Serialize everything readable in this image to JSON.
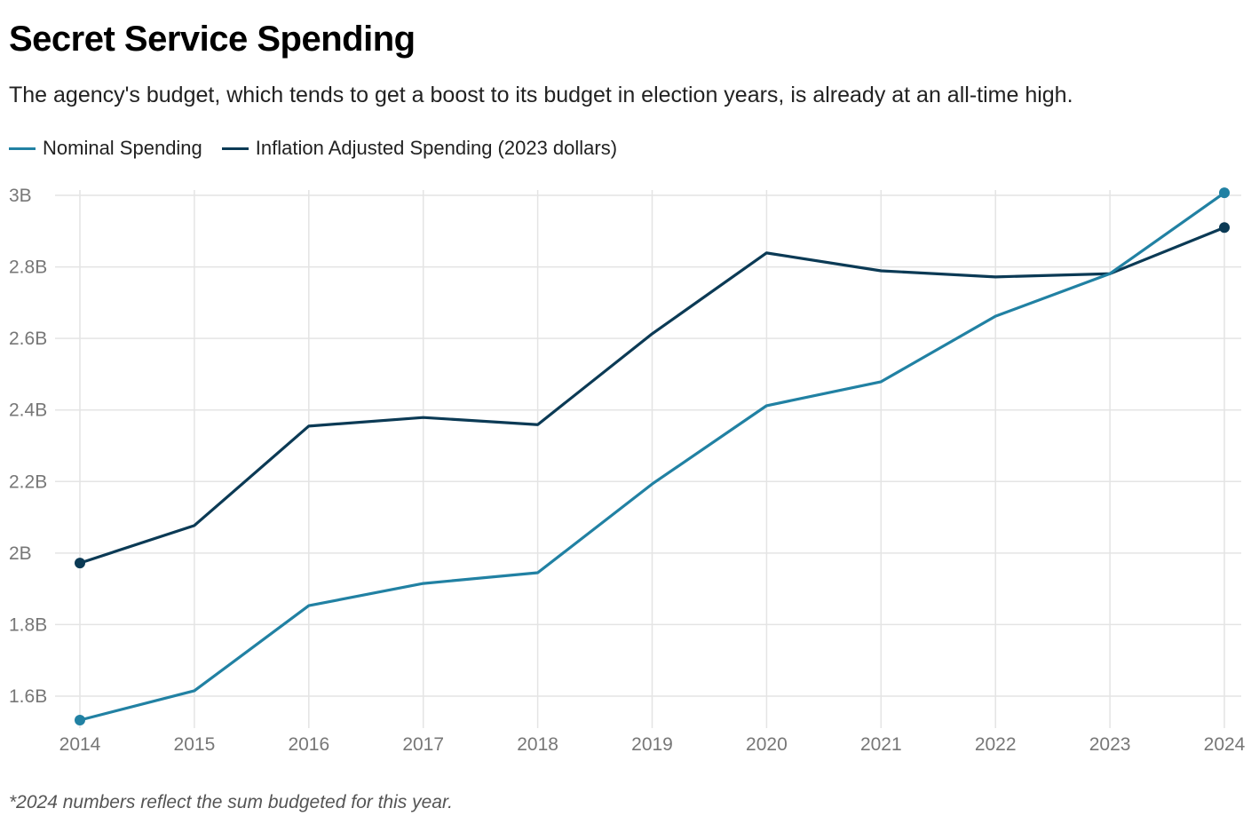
{
  "chart_data": {
    "type": "line",
    "title": "Secret Service Spending",
    "subtitle": "The agency's budget, which tends to get a boost to its budget in election years, is already at an all-time high.",
    "x": [
      "2014",
      "2015",
      "2016",
      "2017",
      "2018",
      "2019",
      "2020",
      "2021",
      "2022",
      "2023",
      "2024"
    ],
    "y_ticks": [
      1.6,
      1.8,
      2.0,
      2.2,
      2.4,
      2.6,
      2.8,
      3.0
    ],
    "y_tick_labels": [
      "1.6B",
      "1.8B",
      "2B",
      "2.2B",
      "2.4B",
      "2.6B",
      "2.8B",
      "3B"
    ],
    "ylim": [
      1.51,
      3.0
    ],
    "grid": true,
    "legend_placement": "top-left",
    "series": [
      {
        "name": "Nominal Spending",
        "color": "#2181a3",
        "values": [
          1.533,
          1.615,
          1.853,
          1.915,
          1.945,
          2.193,
          2.412,
          2.479,
          2.662,
          2.781,
          3.007
        ]
      },
      {
        "name": "Inflation Adjusted Spending (2023 dollars)",
        "color": "#0b3a55",
        "values": [
          1.972,
          2.077,
          2.355,
          2.379,
          2.359,
          2.613,
          2.839,
          2.789,
          2.772,
          2.781,
          2.91
        ]
      }
    ],
    "footnote": "*2024 numbers reflect the sum budgeted for this year."
  }
}
